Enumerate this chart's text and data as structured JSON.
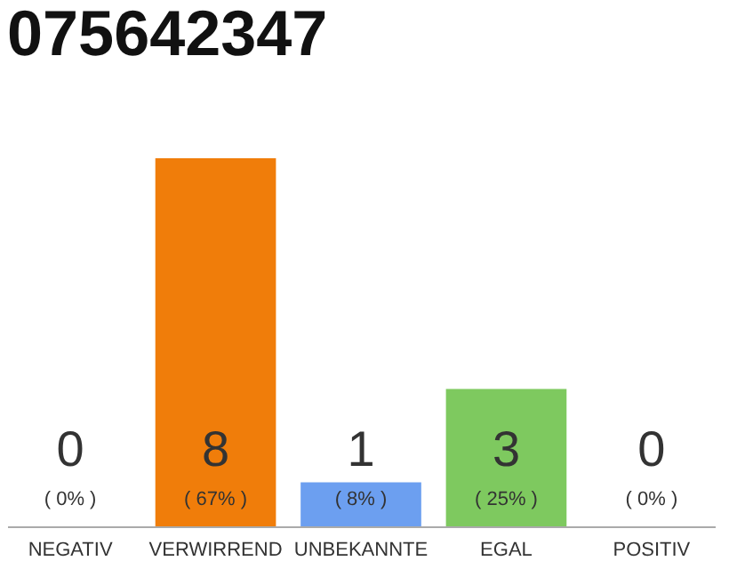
{
  "chart_data": {
    "type": "bar",
    "title": "075642347",
    "categories": [
      "NEGATIV",
      "VERWIRREND",
      "UNBEKANNTE",
      "EGAL",
      "POSITIV"
    ],
    "values": [
      0,
      67,
      8,
      25,
      0
    ],
    "colors": [
      "#cccccc",
      "#f07d0a",
      "#6c9ff0",
      "#7ec95f",
      "#cccccc"
    ],
    "value_labels": [
      "( 0% )",
      "( 67% )",
      "( 8% )",
      "( 25% )",
      "( 0% )"
    ],
    "annotations": [
      "0",
      "8",
      "1",
      "3",
      "0"
    ],
    "tick_labels": "x"
  }
}
